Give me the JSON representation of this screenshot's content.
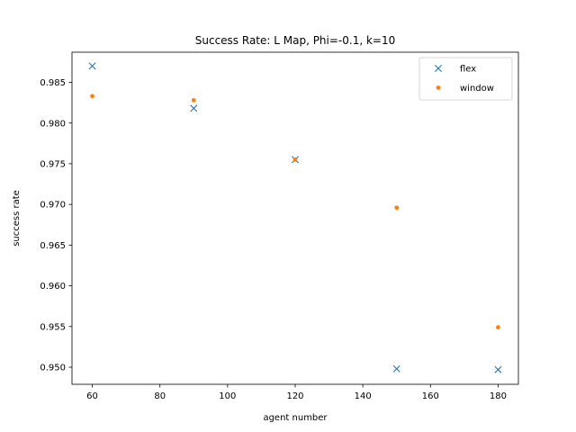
{
  "chart_data": {
    "type": "scatter",
    "title": "Success Rate: L Map, Phi=-0.1, k=10",
    "xlabel": "agent number",
    "ylabel": "success rate",
    "xlim": [
      54.0,
      186.0
    ],
    "ylim": [
      0.9479,
      0.9887
    ],
    "xticks": [
      60,
      80,
      100,
      120,
      140,
      160,
      180
    ],
    "yticks": [
      0.95,
      0.955,
      0.96,
      0.965,
      0.97,
      0.975,
      0.98,
      0.985
    ],
    "xtick_labels": [
      "60",
      "80",
      "100",
      "120",
      "140",
      "160",
      "180"
    ],
    "ytick_labels": [
      "0.950",
      "0.955",
      "0.960",
      "0.965",
      "0.970",
      "0.975",
      "0.980",
      "0.985"
    ],
    "grid": false,
    "legend_position": "top-right",
    "series": [
      {
        "name": "flex",
        "marker": "x",
        "color": "#1f77b4",
        "x": [
          60,
          90,
          120,
          150,
          180
        ],
        "y": [
          0.987,
          0.9818,
          0.9755,
          0.9498,
          0.9497
        ]
      },
      {
        "name": "window",
        "marker": "dot",
        "color": "#ff7f0e",
        "x": [
          60,
          90,
          120,
          150,
          180
        ],
        "y": [
          0.9833,
          0.9828,
          0.9755,
          0.9696,
          0.9549
        ]
      }
    ]
  }
}
